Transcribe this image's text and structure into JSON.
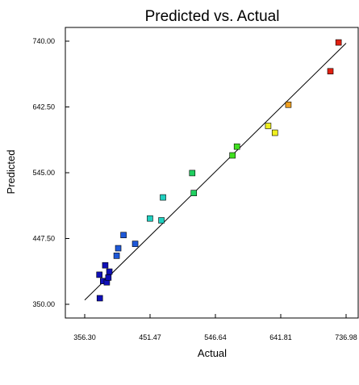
{
  "chart_data": {
    "type": "scatter",
    "title": "Predicted vs. Actual",
    "xlabel": "Actual",
    "ylabel": "Predicted",
    "xlim": [
      356.3,
      736.98
    ],
    "ylim": [
      350.0,
      740.0
    ],
    "x_ticks": [
      "356.30",
      "451.47",
      "546.64",
      "641.81",
      "736.98"
    ],
    "y_ticks": [
      "350.00",
      "447.50",
      "545.00",
      "642.50",
      "740.00"
    ],
    "x_tick_values": [
      356.3,
      451.47,
      546.64,
      641.81,
      736.98
    ],
    "y_tick_values": [
      350.0,
      447.5,
      545.0,
      642.5,
      740.0
    ],
    "diagonal": [
      [
        356.3,
        356.3
      ],
      [
        736.98,
        736.98
      ]
    ],
    "points": [
      {
        "x": 378.3,
        "y": 359.0,
        "color": "#1010b8"
      },
      {
        "x": 377.7,
        "y": 393.8,
        "color": "#1010b8"
      },
      {
        "x": 383.1,
        "y": 384.5,
        "color": "#1010b8"
      },
      {
        "x": 386.2,
        "y": 407.8,
        "color": "#1010b8"
      },
      {
        "x": 388.5,
        "y": 382.6,
        "color": "#1010b8"
      },
      {
        "x": 390.8,
        "y": 389.6,
        "color": "#1010b8"
      },
      {
        "x": 392.2,
        "y": 398.4,
        "color": "#1010b8"
      },
      {
        "x": 402.8,
        "y": 421.9,
        "color": "#1e58d8"
      },
      {
        "x": 405.1,
        "y": 433.1,
        "color": "#1e58d8"
      },
      {
        "x": 412.8,
        "y": 452.6,
        "color": "#1e58d8"
      },
      {
        "x": 429.8,
        "y": 439.6,
        "color": "#1e58d8"
      },
      {
        "x": 451.4,
        "y": 477.2,
        "color": "#20d0c0"
      },
      {
        "x": 470.3,
        "y": 508.4,
        "color": "#20d0c0"
      },
      {
        "x": 468.0,
        "y": 474.4,
        "color": "#20d0c0"
      },
      {
        "x": 512.9,
        "y": 544.5,
        "color": "#20d060"
      },
      {
        "x": 515.2,
        "y": 514.9,
        "color": "#20d060"
      },
      {
        "x": 571.5,
        "y": 570.7,
        "color": "#40e020"
      },
      {
        "x": 578.0,
        "y": 583.7,
        "color": "#40e020"
      },
      {
        "x": 623.5,
        "y": 614.4,
        "color": "#f0f020"
      },
      {
        "x": 633.3,
        "y": 604.2,
        "color": "#f0f020"
      },
      {
        "x": 652.9,
        "y": 645.8,
        "color": "#f0a020"
      },
      {
        "x": 714.1,
        "y": 695.4,
        "color": "#e02010"
      },
      {
        "x": 726.0,
        "y": 738.1,
        "color": "#e02010"
      }
    ]
  }
}
